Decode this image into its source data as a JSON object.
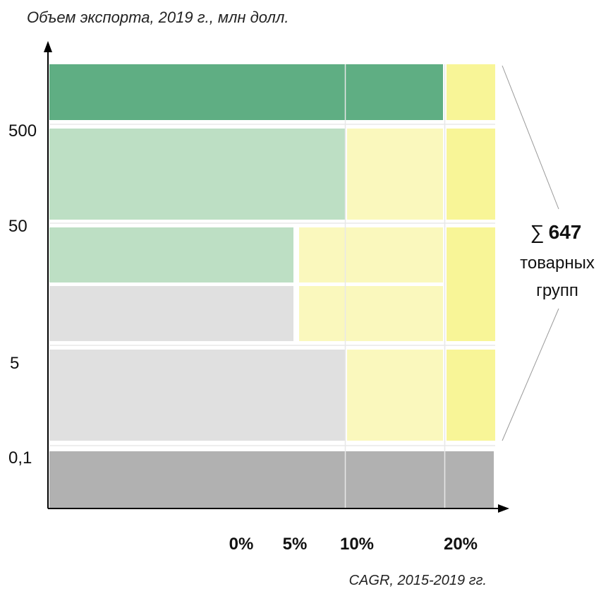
{
  "chart_data": {
    "type": "heatmap",
    "ylabel": "Объем экспорта, 2019 г., млн долл.",
    "xlabel": "CAGR, 2015-2019 гг.",
    "y_ticks": [
      "500",
      "50",
      "5",
      "0,1"
    ],
    "x_ticks": [
      "0%",
      "5%",
      "10%",
      "20%"
    ],
    "colors": {
      "dark_green": "#5fae83",
      "light_green": "#bddfc4",
      "light_yellow": "#faf8bd",
      "yellow": "#f8f597",
      "light_gray": "#e0e0e0",
      "dark_gray": "#b1b1b1"
    },
    "annotation": {
      "sum_symbol": "∑",
      "count": "647",
      "line1": "товарных",
      "line2": "групп"
    }
  }
}
